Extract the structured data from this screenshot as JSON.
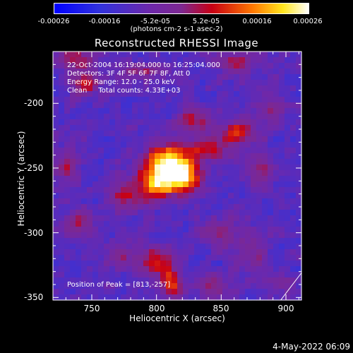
{
  "colorbar": {
    "ticks": [
      "-0.00026",
      "-0.00016",
      "-5.2e-05",
      "5.2e-05",
      "0.00016",
      "0.00026"
    ],
    "unit_label": "(photons cm-2 s-1 asec-2)"
  },
  "title": "Reconstructed RHESSI Image",
  "info": {
    "time": "22-Oct-2004 16:19:04.000 to 16:25:04.000",
    "detectors": "Detectors: 3F 4F 5F 6F 7F 8F, Att 0",
    "energy": "Energy Range: 12.0 - 25.0 keV",
    "clean": "Clean     Total counts: 4.33E+03",
    "peak": "Position of Peak = [813,-257]"
  },
  "footer_date": "4-May-2022 06:09",
  "chart_data": {
    "type": "heatmap",
    "title": "Reconstructed RHESSI Image",
    "xlabel": "Heliocentric X (arcsec)",
    "ylabel": "Heliocentric Y (arcsec)",
    "xlim": [
      720,
      912
    ],
    "ylim": [
      -352,
      -160
    ],
    "x_ticks": [
      750,
      800,
      850,
      900
    ],
    "y_ticks": [
      -200,
      -250,
      -300,
      -350
    ],
    "colorbar_range": [
      -0.00026,
      0.00026
    ],
    "colormap": "blue-purple-red-yellow-white",
    "peak": [
      813,
      -257
    ],
    "sources": [
      {
        "x": 808,
        "y": -246,
        "amp": 1.0,
        "sx": 12,
        "sy": 10
      },
      {
        "x": 822,
        "y": -257,
        "amp": 0.85,
        "sx": 9,
        "sy": 8
      },
      {
        "x": 800,
        "y": -263,
        "amp": 0.75,
        "sx": 10,
        "sy": 8
      },
      {
        "x": 840,
        "y": -236,
        "amp": 0.55,
        "sx": 12,
        "sy": 6
      },
      {
        "x": 862,
        "y": -222,
        "amp": 0.5,
        "sx": 10,
        "sy": 7
      },
      {
        "x": 828,
        "y": -214,
        "amp": 0.45,
        "sx": 8,
        "sy": 7
      },
      {
        "x": 776,
        "y": -272,
        "amp": 0.45,
        "sx": 10,
        "sy": 8
      },
      {
        "x": 745,
        "y": -186,
        "amp": 0.5,
        "sx": 8,
        "sy": 7
      },
      {
        "x": 738,
        "y": -166,
        "amp": 0.45,
        "sx": 10,
        "sy": 6
      },
      {
        "x": 790,
        "y": -175,
        "amp": 0.35,
        "sx": 14,
        "sy": 5
      },
      {
        "x": 862,
        "y": -168,
        "amp": 0.4,
        "sx": 12,
        "sy": 6
      },
      {
        "x": 880,
        "y": -250,
        "amp": 0.4,
        "sx": 6,
        "sy": 12
      },
      {
        "x": 730,
        "y": -248,
        "amp": 0.4,
        "sx": 7,
        "sy": 10
      },
      {
        "x": 740,
        "y": -292,
        "amp": 0.45,
        "sx": 8,
        "sy": 8
      },
      {
        "x": 800,
        "y": -322,
        "amp": 0.5,
        "sx": 9,
        "sy": 10
      },
      {
        "x": 812,
        "y": -338,
        "amp": 0.55,
        "sx": 6,
        "sy": 8
      },
      {
        "x": 772,
        "y": -318,
        "amp": 0.35,
        "sx": 8,
        "sy": 6
      },
      {
        "x": 848,
        "y": -300,
        "amp": 0.35,
        "sx": 10,
        "sy": 7
      },
      {
        "x": 872,
        "y": -316,
        "amp": 0.35,
        "sx": 8,
        "sy": 10
      },
      {
        "x": 844,
        "y": -342,
        "amp": 0.35,
        "sx": 12,
        "sy": 6
      },
      {
        "x": 888,
        "y": -205,
        "amp": 0.3,
        "sx": 8,
        "sy": 8
      },
      {
        "x": 898,
        "y": -340,
        "amp": 0.3,
        "sx": 6,
        "sy": 6
      }
    ],
    "limb_line": [
      [
        896,
        -352
      ],
      [
        912,
        -331
      ]
    ]
  }
}
